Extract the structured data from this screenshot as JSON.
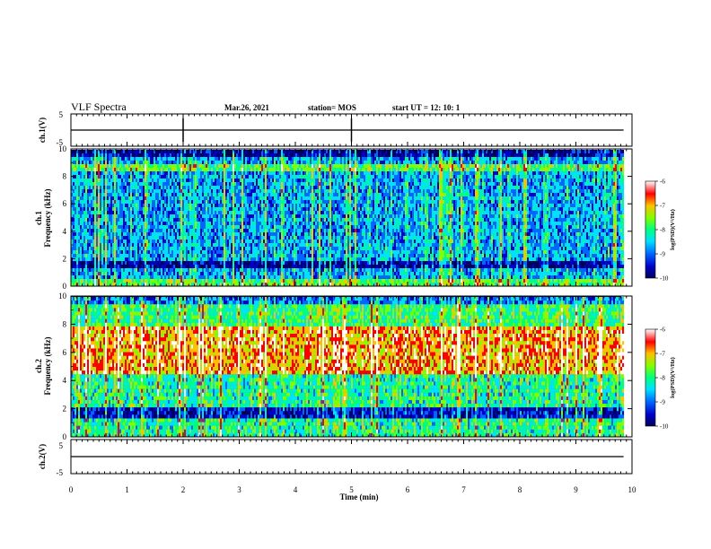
{
  "header": {
    "title": "VLF Spectra",
    "date": "Mar.26, 2021",
    "station": "station= MOS",
    "start": "start UT =   12: 10: 1"
  },
  "colors": {
    "spectrum": [
      "#00005a",
      "#0000c8",
      "#0066ff",
      "#00e0ff",
      "#00ff80",
      "#7fff00",
      "#ffc000",
      "#ff0000",
      "#ffffff"
    ],
    "trace": "#000000"
  },
  "chart_data": [
    {
      "type": "line",
      "name": "ch1-waveform",
      "ylabel": "ch.1(V)",
      "ylim": [
        -5,
        5
      ],
      "yticks": [
        "5",
        "-5"
      ],
      "x": [
        0,
        10
      ],
      "y": [
        0,
        0
      ]
    },
    {
      "type": "heatmap",
      "name": "ch1-spectrogram",
      "ylabel": "ch.1\nFrequency (kHz)",
      "ylim": [
        0,
        10
      ],
      "yticks": [
        "0",
        "2",
        "4",
        "6",
        "8",
        "10"
      ],
      "xlim": [
        0,
        9.85
      ],
      "colorbar": {
        "label": "log(PSD)(V²/Hz)",
        "range": [
          -10,
          -6
        ],
        "ticks": [
          "-6",
          "-7",
          "-8",
          "-9",
          "-10"
        ]
      },
      "description_bands": "dark lines near 1.5 kHz and 9.6 kHz; broadband sferics across 0-9 kHz"
    },
    {
      "type": "heatmap",
      "name": "ch2-spectrogram",
      "ylabel": "ch.2\nFrequency (kHz)",
      "ylim": [
        0,
        10
      ],
      "yticks": [
        "0",
        "2",
        "4",
        "6",
        "8",
        "10"
      ],
      "xlim": [
        0,
        9.85
      ],
      "colorbar": {
        "label": "log(PSD)(V²/Hz)",
        "range": [
          -10,
          -6
        ],
        "ticks": [
          "-6",
          "-7",
          "-8",
          "-9",
          "-10"
        ]
      }
    },
    {
      "type": "line",
      "name": "ch2-waveform",
      "ylabel": "ch.2(V)",
      "ylim": [
        -5,
        5
      ],
      "yticks": [
        "5",
        "-5"
      ],
      "x": [
        0,
        10
      ],
      "y": [
        0,
        0
      ]
    }
  ],
  "xaxis": {
    "label": "Time  (min)",
    "ticks": [
      "0",
      "1",
      "2",
      "3",
      "4",
      "5",
      "6",
      "7",
      "8",
      "9",
      "10"
    ],
    "range": [
      0,
      10
    ]
  }
}
